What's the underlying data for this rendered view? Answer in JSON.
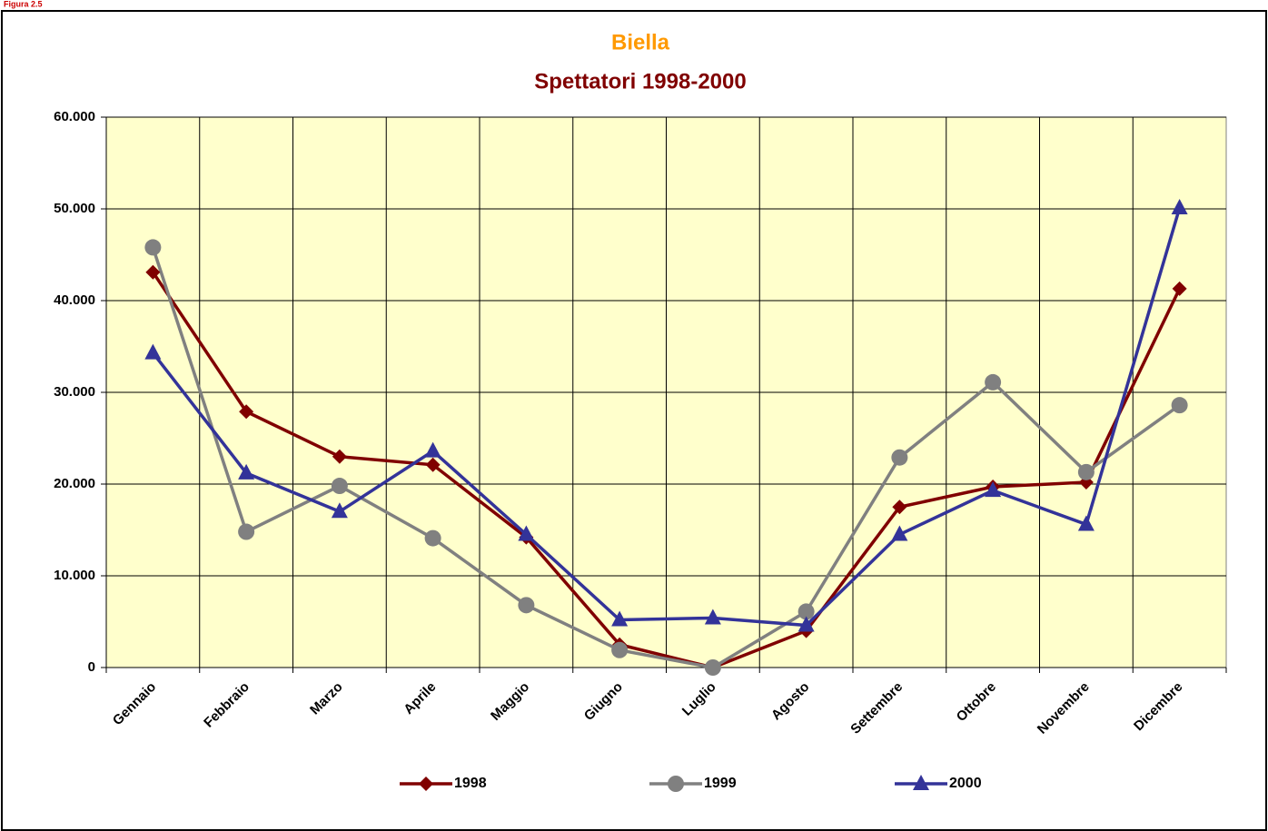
{
  "figure_label": "Figura 2.5",
  "chart_data": {
    "type": "line",
    "title": "Biella",
    "subtitle": "Spettatori 1998-2000",
    "categories": [
      "Gennaio",
      "Febbraio",
      "Marzo",
      "Aprile",
      "Maggio",
      "Giugno",
      "Luglio",
      "Agosto",
      "Settembre",
      "Ottobre",
      "Novembre",
      "Dicembre"
    ],
    "series": [
      {
        "name": "1998",
        "color": "#800000",
        "marker": "diamond",
        "values": [
          43100,
          27900,
          23000,
          22100,
          14200,
          2500,
          0,
          4000,
          17500,
          19700,
          20200,
          41300
        ]
      },
      {
        "name": "1999",
        "color": "#808080",
        "marker": "circle",
        "values": [
          45800,
          14800,
          19800,
          14100,
          6800,
          1900,
          0,
          6100,
          22900,
          31100,
          21300,
          28600
        ]
      },
      {
        "name": "2000",
        "color": "#333399",
        "marker": "triangle",
        "values": [
          34300,
          21200,
          17000,
          23600,
          14500,
          5200,
          5400,
          4600,
          14500,
          19300,
          15600,
          50100
        ]
      }
    ],
    "ylim": [
      0,
      60000
    ],
    "yticks": [
      0,
      {
        "value": 10000,
        "label": "10.000"
      },
      {
        "value": 20000,
        "label": "20.000"
      },
      {
        "value": 30000,
        "label": "30.000"
      },
      {
        "value": 40000,
        "label": "40.000"
      },
      {
        "value": 50000,
        "label": "50.000"
      },
      {
        "value": 60000,
        "label": "60.000"
      }
    ],
    "grid": true,
    "background": "#FFFFCC",
    "legend": "bottom"
  }
}
